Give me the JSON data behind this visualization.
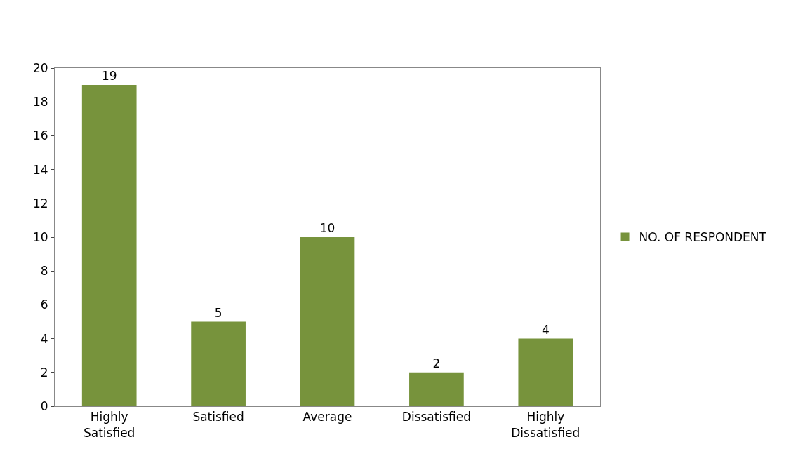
{
  "chart_data": {
    "type": "bar",
    "categories": [
      "Highly Satisfied",
      "Satisfied",
      "Average",
      "Dissatisfied",
      "Highly Dissatisfied"
    ],
    "series": [
      {
        "name": "NO. OF RESPONDENT",
        "color": "#77933c",
        "values": [
          19,
          5,
          10,
          2,
          4
        ]
      }
    ],
    "ylim": [
      0,
      20
    ],
    "yticks": [
      0,
      2,
      4,
      6,
      8,
      10,
      12,
      14,
      16,
      18,
      20
    ],
    "data_labels": true,
    "grid": false,
    "legend": "right"
  }
}
